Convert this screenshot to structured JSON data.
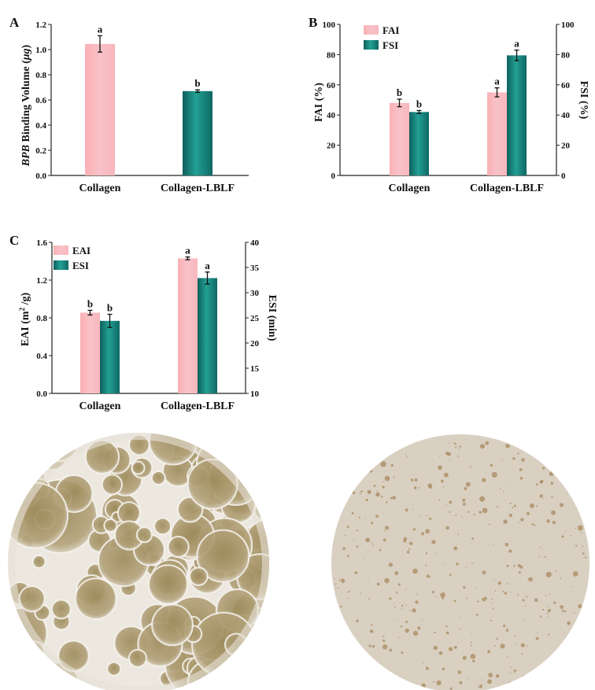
{
  "colors": {
    "pink": "#f9b6bd",
    "teal": "#1e968b",
    "teal_dark": "#0e5f5c",
    "axis": "#222222"
  },
  "chart_data": [
    {
      "panel": "A",
      "type": "bar",
      "categories": [
        "Collagen",
        "Collagen-LBLF"
      ],
      "ylabel_italic": "BPB",
      "ylabel_rest": " Binding Volume (",
      "ylabel_unit": "μg",
      "ylabel_close": ")",
      "ylim": [
        0,
        1.2
      ],
      "yticks": [
        "0.0",
        "0.2",
        "0.4",
        "0.6",
        "0.8",
        "1.0",
        "1.2"
      ],
      "series": [
        {
          "values": [
            1.045,
            0.67
          ],
          "errors": [
            0.065,
            0.01
          ],
          "letters": [
            "a",
            "b"
          ],
          "colors": [
            "pink",
            "teal"
          ]
        }
      ]
    },
    {
      "panel": "B",
      "type": "bar",
      "categories": [
        "Collagen",
        "Collagen-LBLF"
      ],
      "ylabel": "FAI (%)",
      "y2label": "FSI (%)",
      "ylim": [
        0,
        100
      ],
      "y2lim": [
        0,
        100
      ],
      "yticks": [
        "0",
        "20",
        "40",
        "60",
        "80",
        "100"
      ],
      "y2ticks": [
        "0",
        "20",
        "40",
        "60",
        "80",
        "100"
      ],
      "legend": "top-left",
      "series": [
        {
          "name": "FAI",
          "axis": "left",
          "values": [
            48,
            55
          ],
          "errors": [
            2.5,
            3
          ],
          "letters": [
            "b",
            "a"
          ],
          "color": "pink"
        },
        {
          "name": "FSI",
          "axis": "right",
          "values": [
            42,
            79.5
          ],
          "errors": [
            1,
            3.5
          ],
          "letters": [
            "b",
            "a"
          ],
          "color": "teal"
        }
      ]
    },
    {
      "panel": "C",
      "type": "bar",
      "categories": [
        "Collagen",
        "Collagen-LBLF"
      ],
      "ylabel": "EAI (m",
      "ylabel_sup": "2",
      "ylabel_close": " /g)",
      "y2label": "ESI (min)",
      "ylim": [
        0,
        1.6
      ],
      "y2lim": [
        10,
        40
      ],
      "yticks": [
        "0.0",
        "0.4",
        "0.8",
        "1.2",
        "1.6"
      ],
      "y2ticks": [
        "10",
        "15",
        "20",
        "25",
        "30",
        "35",
        "40"
      ],
      "legend": "top-left",
      "series": [
        {
          "name": "EAI",
          "axis": "left",
          "values": [
            0.855,
            1.43
          ],
          "errors": [
            0.025,
            0.015
          ],
          "letters": [
            "b",
            "a"
          ],
          "color": "pink"
        },
        {
          "name": "ESI",
          "axis": "right",
          "values": [
            24.4,
            32.9
          ],
          "errors": [
            1.3,
            1.2
          ],
          "letters": [
            "b",
            "a"
          ],
          "color": "teal"
        }
      ]
    }
  ],
  "photos": [
    {
      "name": "collagen-foam-photo",
      "style": "large-bubbles"
    },
    {
      "name": "collagen-lblf-foam-photo",
      "style": "fine-foam"
    }
  ]
}
